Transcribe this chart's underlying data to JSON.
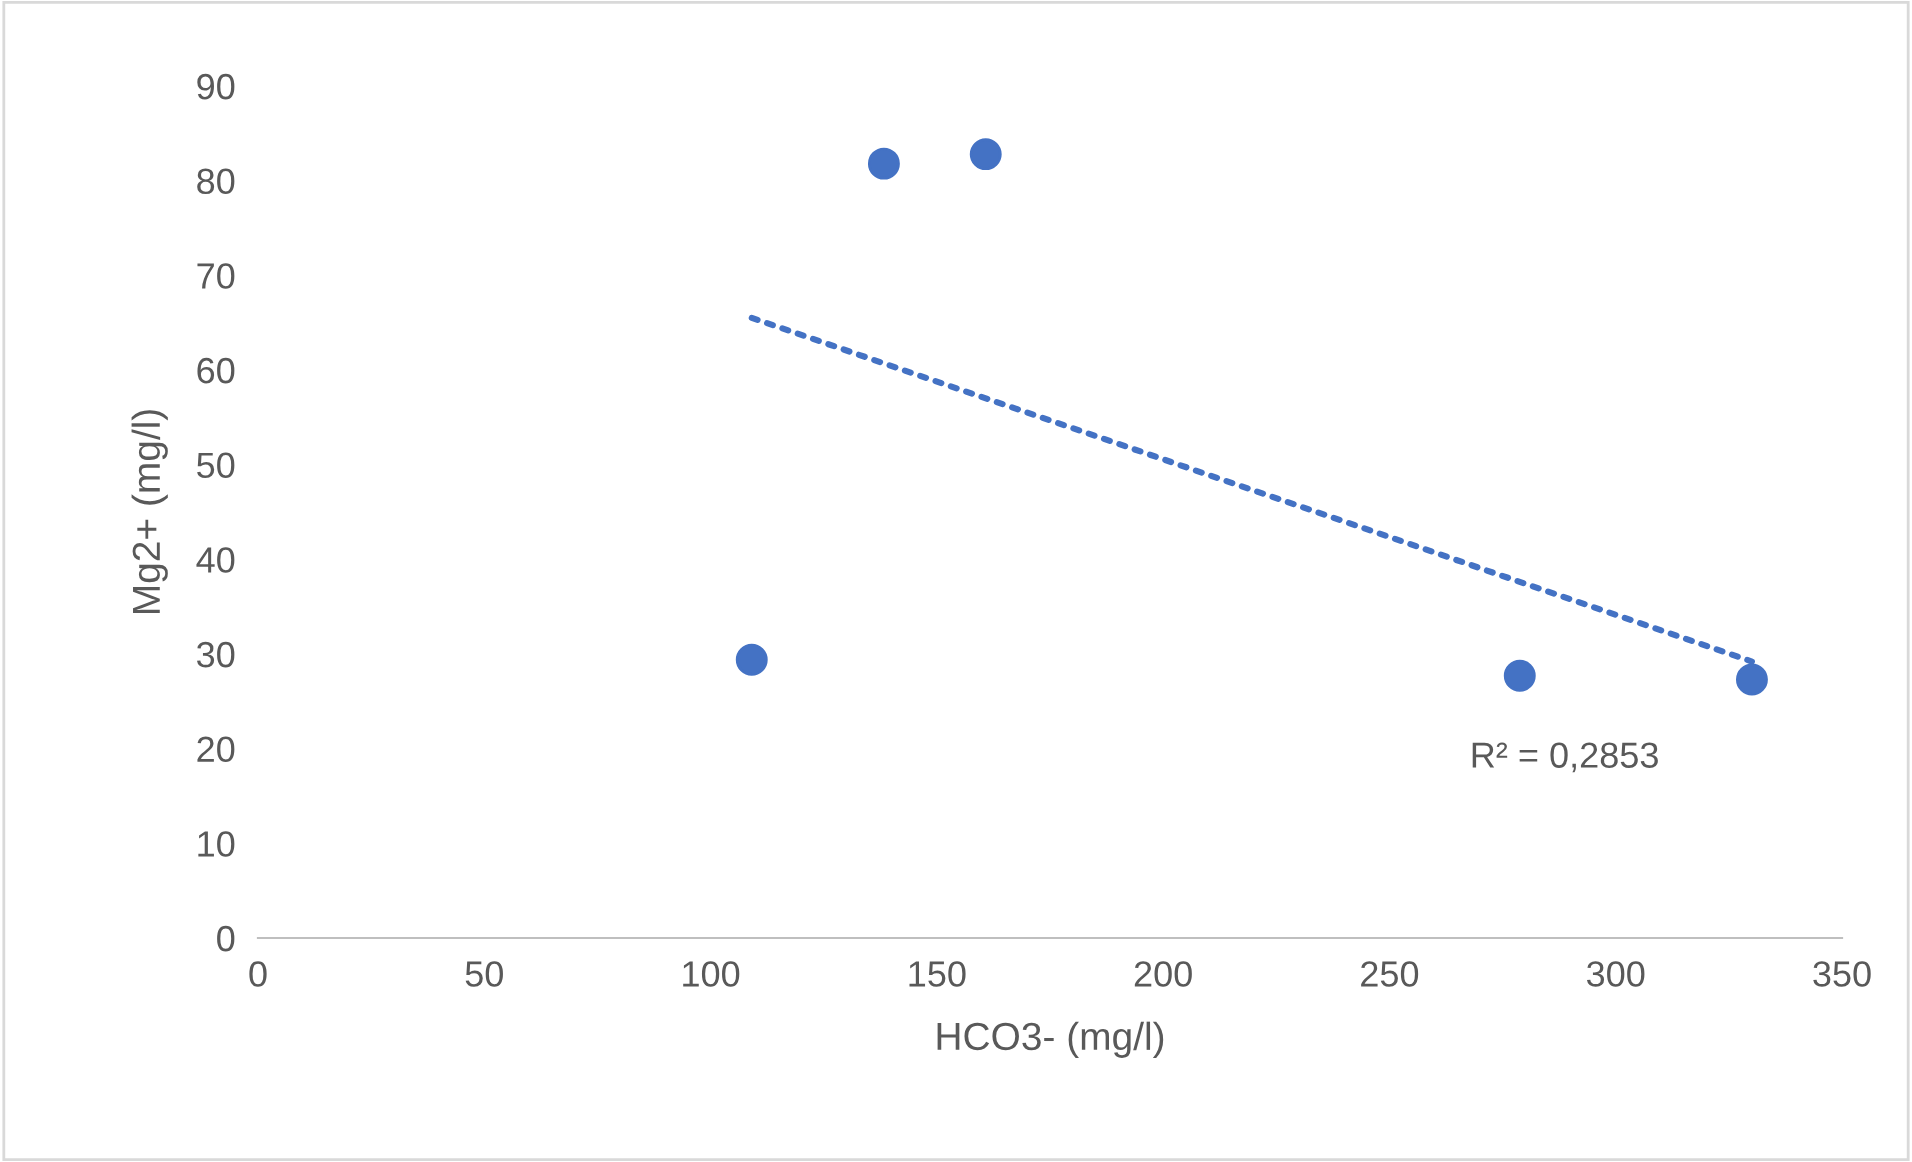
{
  "chart_data": {
    "type": "scatter",
    "xlabel": "HCO3- (mg/l)",
    "ylabel": "Mg2+ (mg/l)",
    "xlim": [
      0,
      350
    ],
    "ylim": [
      0,
      90
    ],
    "xticks": [
      0,
      50,
      100,
      150,
      200,
      250,
      300,
      350
    ],
    "yticks": [
      0,
      10,
      20,
      30,
      40,
      50,
      60,
      70,
      80,
      90
    ],
    "grid": false,
    "legend": false,
    "series": [
      {
        "marker": "circle",
        "color": "#4472c4",
        "x": [
          109.1,
          138.3,
          160.8,
          278.8,
          330.1
        ],
        "values": [
          29.4,
          81.8,
          82.8,
          27.7,
          27.3
        ]
      },
      {
        "type": "line",
        "marker": "none",
        "color": "#4472c4",
        "line_style": "dotted",
        "x": [
          109.1,
          330.1
        ],
        "values": [
          65.5,
          29.2
        ]
      }
    ],
    "annotations": [
      "R² = 0,2853"
    ]
  }
}
